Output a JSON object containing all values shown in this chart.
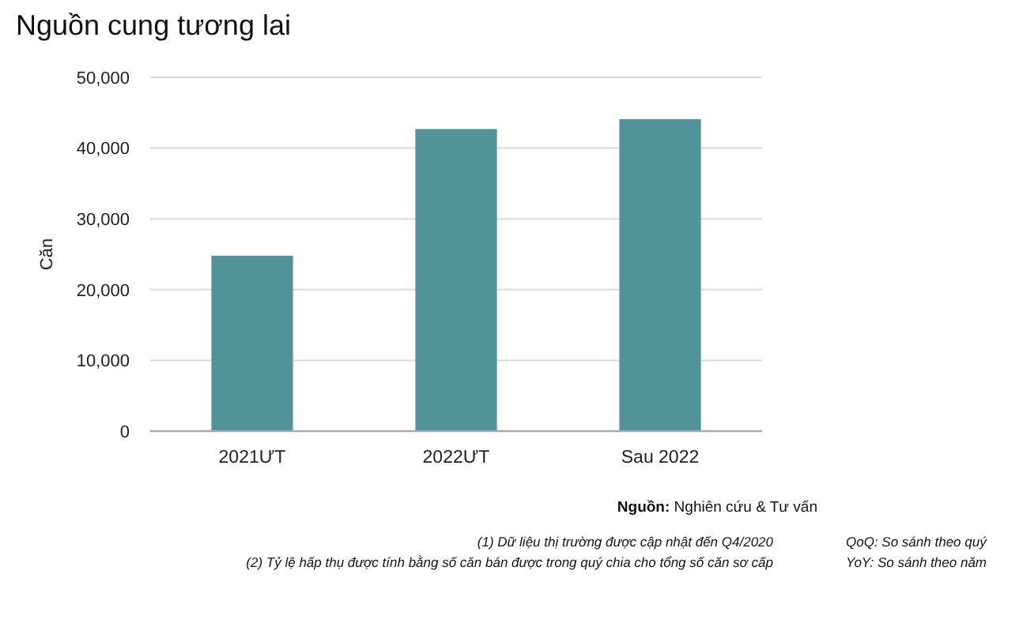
{
  "chart_data": {
    "type": "bar",
    "title": "Nguồn cung tương lai",
    "ylabel": "Căn",
    "categories": [
      "2021ƯT",
      "2022ƯT",
      "Sau 2022"
    ],
    "values": [
      24800,
      42700,
      44100
    ],
    "color": "#52939a",
    "ylim": [
      0,
      50000
    ],
    "yticks": [
      {
        "value": 0,
        "label": "0"
      },
      {
        "value": 10000,
        "label": "10,000"
      },
      {
        "value": 20000,
        "label": "20,000"
      },
      {
        "value": 30000,
        "label": "30,000"
      },
      {
        "value": 40000,
        "label": "40,000"
      },
      {
        "value": 50000,
        "label": "50,000"
      }
    ],
    "grid": "y",
    "annotations": [
      "Nguồn: Nghiên cứu & Tư vấn",
      "(1) Dữ liệu thị trường được cập nhật đến Q4/2020",
      "(2) Tỷ lệ hấp thụ được tính bằng số căn bán được trong quý chia cho tổng số căn sơ cấp",
      "QoQ: So sánh theo quý",
      "YoY: So sánh theo năm"
    ]
  }
}
